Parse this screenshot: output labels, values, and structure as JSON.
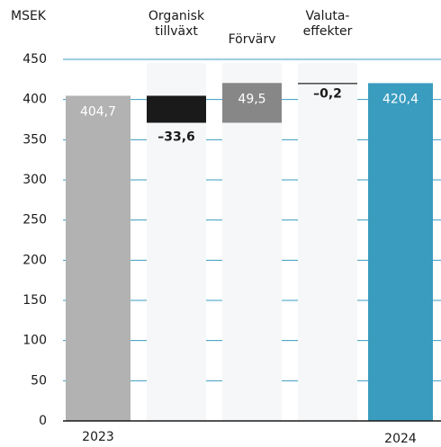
{
  "chart_data": {
    "type": "waterfall",
    "y_label": "MSEK",
    "categories": [
      "2023",
      "Organisk tillväxt",
      "Förvärv",
      "Valuta-effekter",
      "2024"
    ],
    "values": [
      404.7,
      -33.6,
      49.5,
      -0.2,
      420.4
    ],
    "value_labels": [
      "404,7",
      "–33,6",
      "49,5",
      "–0,2",
      "420,4"
    ],
    "colors": [
      "#b2b2b2",
      "#1a1a1a",
      "#878787",
      "#1a1a1a",
      "#3a9cbf"
    ],
    "ylim": [
      0,
      450
    ],
    "yticks": [
      0,
      50,
      100,
      150,
      200,
      250,
      300,
      350,
      400,
      450
    ],
    "grid": true,
    "grid_color": "#3a9cbf"
  }
}
